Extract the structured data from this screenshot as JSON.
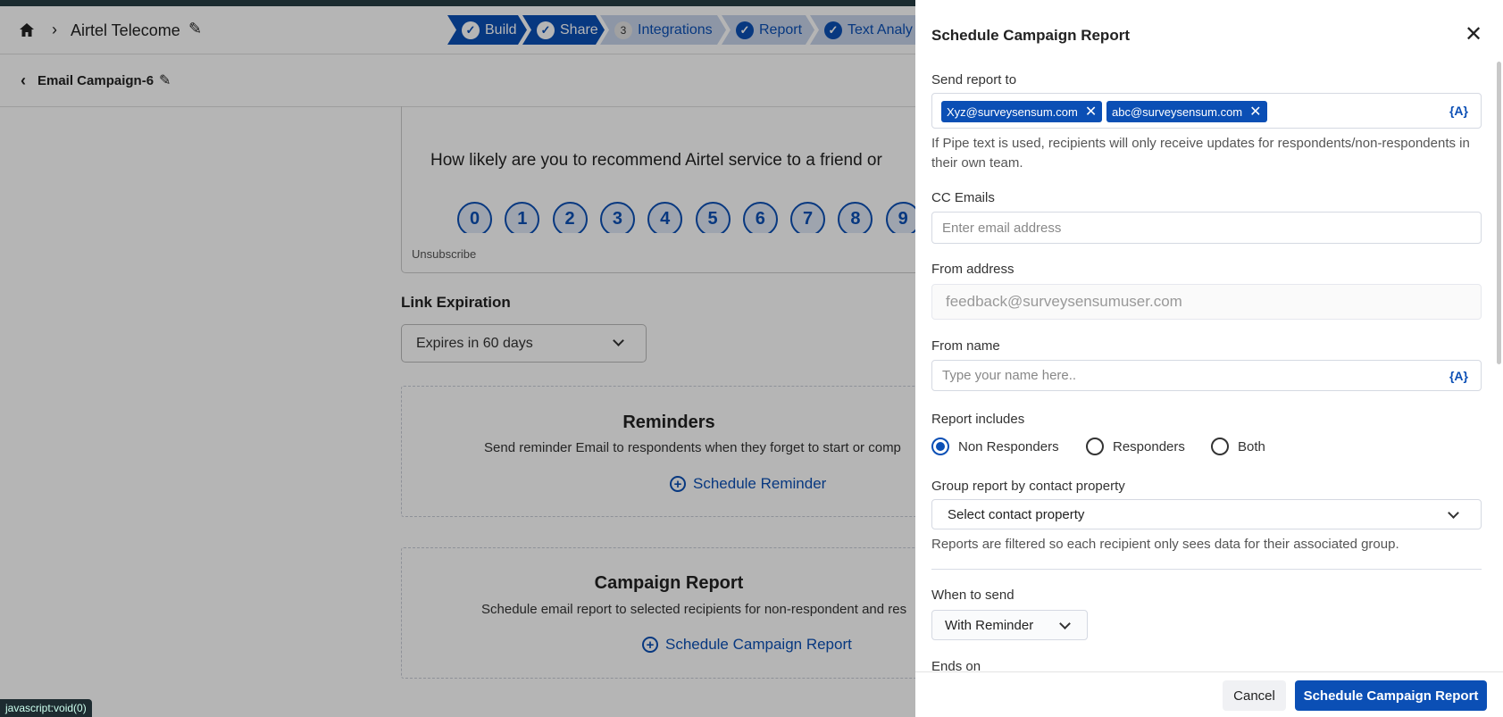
{
  "header": {
    "breadcrumb": "Airtel Telecome",
    "campaign": "Email Campaign-6"
  },
  "stepper": [
    {
      "label": "Build",
      "state": "done"
    },
    {
      "label": "Share",
      "state": "done"
    },
    {
      "label": "Integrations",
      "state": "pending",
      "number": "3"
    },
    {
      "label": "Report",
      "state": "done"
    },
    {
      "label": "Text Analy",
      "state": "done"
    }
  ],
  "preview": {
    "question": "How likely are you to recommend Airtel service to a friend or",
    "scale": [
      "0",
      "1",
      "2",
      "3",
      "4",
      "5",
      "6",
      "7",
      "8",
      "9"
    ],
    "unsubscribe": "Unsubscribe"
  },
  "link_expiration": {
    "label": "Link Expiration",
    "value": "Expires in 60 days"
  },
  "reminders": {
    "title": "Reminders",
    "description": "Send reminder Email to respondents when they forget to start or comp",
    "action": "Schedule Reminder"
  },
  "campaign_report": {
    "title": "Campaign Report",
    "description": "Schedule email report to selected recipients for non-respondent and res",
    "action": "Schedule Campaign Report"
  },
  "status_bar": "javascript:void(0)",
  "panel": {
    "title": "Schedule Campaign Report",
    "send_to_label": "Send report to",
    "recipients": [
      "Xyz@surveysensum.com",
      "abc@surveysensum.com"
    ],
    "pipe_label": "{A}",
    "pipe_help": "If Pipe text is used, recipients will only receive updates for respondents/non-respondents in their own team.",
    "cc_label": "CC Emails",
    "cc_placeholder": "Enter email address",
    "from_address_label": "From address",
    "from_address_value": "feedback@surveysensumuser.com",
    "from_name_label": "From name",
    "from_name_placeholder": "Type your name here..",
    "report_includes_label": "Report includes",
    "report_includes_options": [
      "Non Responders",
      "Responders",
      "Both"
    ],
    "report_includes_selected": "Non Responders",
    "group_label": "Group report by contact property",
    "group_value": "Select contact property",
    "group_help": "Reports are filtered so each recipient only sees data for their associated group.",
    "when_label": "When to send",
    "when_value": "With Reminder",
    "ends_label": "Ends on",
    "cancel": "Cancel",
    "submit": "Schedule Campaign Report"
  },
  "colors": {
    "primary": "#0b4fb5",
    "topbar": "#263d44"
  }
}
